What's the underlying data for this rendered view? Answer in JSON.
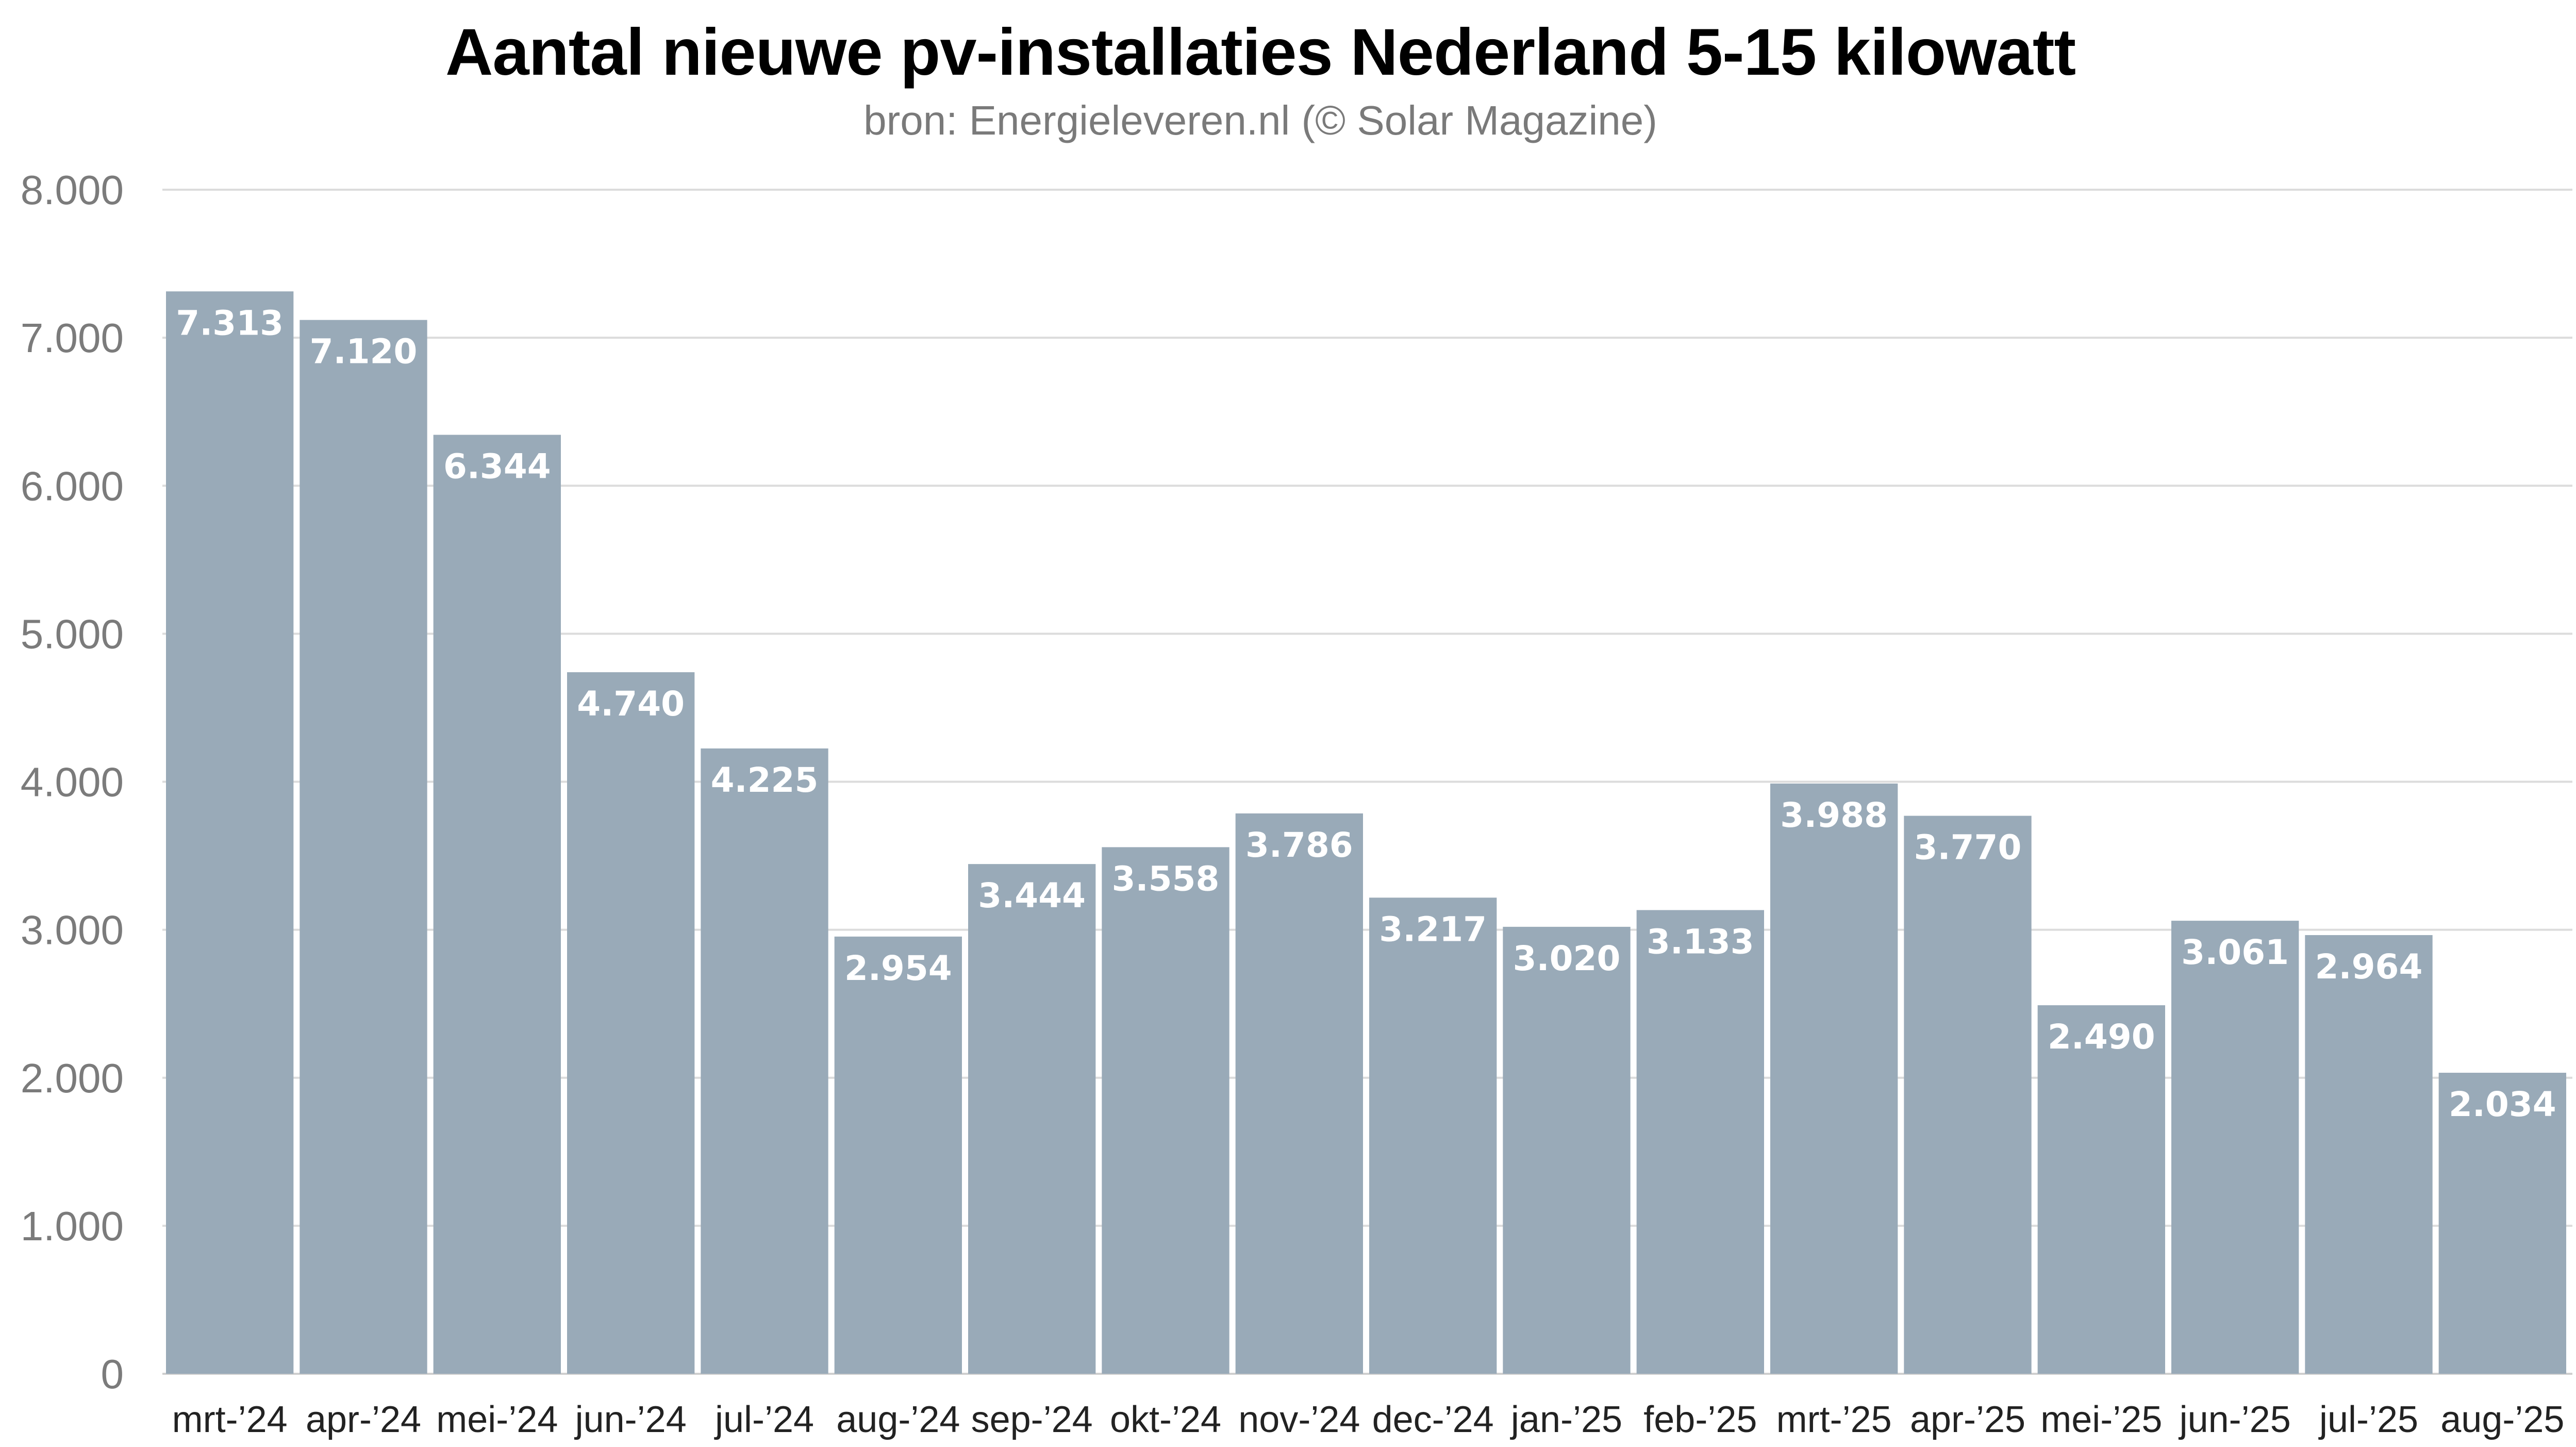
{
  "chart_data": {
    "type": "bar",
    "title": "Aantal nieuwe pv-installaties Nederland 5-15 kilowatt",
    "subtitle": "bron: Energieleveren.nl (© Solar Magazine)",
    "categories": [
      "mrt-’24",
      "apr-’24",
      "mei-’24",
      "jun-’24",
      "jul-’24",
      "aug-’24",
      "sep-’24",
      "okt-’24",
      "nov-’24",
      "dec-’24",
      "jan-’25",
      "feb-’25",
      "mrt-’25",
      "apr-’25",
      "mei-’25",
      "jun-’25",
      "jul-’25",
      "aug-’25"
    ],
    "values": [
      7313,
      7120,
      6344,
      4740,
      4225,
      2954,
      3444,
      3558,
      3786,
      3217,
      3020,
      3133,
      3988,
      3770,
      2490,
      3061,
      2964,
      2034
    ],
    "value_labels": [
      "7.313",
      "7.120",
      "6.344",
      "4.740",
      "4.225",
      "2.954",
      "3.444",
      "3.558",
      "3.786",
      "3.217",
      "3.020",
      "3.133",
      "3.988",
      "3.770",
      "2.490",
      "3.061",
      "2.964",
      "2.034"
    ],
    "yticks": [
      0,
      1000,
      2000,
      3000,
      4000,
      5000,
      6000,
      7000,
      8000
    ],
    "ytick_labels": [
      "0",
      "1.000",
      "2.000",
      "3.000",
      "4.000",
      "5.000",
      "6.000",
      "7.000",
      "8.000"
    ],
    "ylim": [
      0,
      8000
    ],
    "grid": true,
    "legend": "none",
    "colors": {
      "bar": "#99aab8",
      "grid": "#dcdcdc",
      "value_label": "#ffffff"
    }
  }
}
